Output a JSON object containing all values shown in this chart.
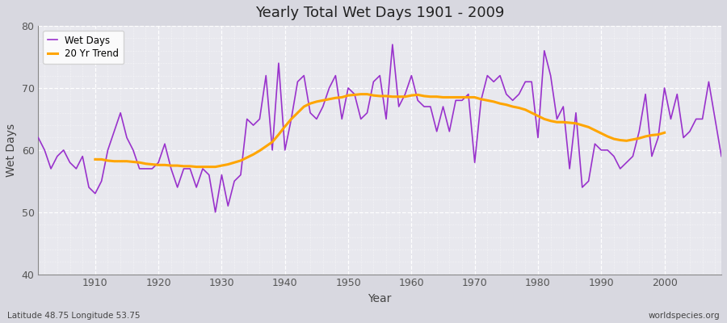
{
  "title": "Yearly Total Wet Days 1901 - 2009",
  "xlabel": "Year",
  "ylabel": "Wet Days",
  "footnote_left": "Latitude 48.75 Longitude 53.75",
  "footnote_right": "worldspecies.org",
  "legend_wet": "Wet Days",
  "legend_trend": "20 Yr Trend",
  "wet_color": "#9932CC",
  "trend_color": "#FFA500",
  "plot_bg_color": "#e8e8ee",
  "fig_bg_color": "#d8d8e0",
  "ylim": [
    40,
    80
  ],
  "xlim": [
    1901,
    2009
  ],
  "yticks": [
    40,
    50,
    60,
    70,
    80
  ],
  "xticks": [
    1910,
    1920,
    1930,
    1940,
    1950,
    1960,
    1970,
    1980,
    1990,
    2000
  ],
  "years": [
    1901,
    1902,
    1903,
    1904,
    1905,
    1906,
    1907,
    1908,
    1909,
    1910,
    1911,
    1912,
    1913,
    1914,
    1915,
    1916,
    1917,
    1918,
    1919,
    1920,
    1921,
    1922,
    1923,
    1924,
    1925,
    1926,
    1927,
    1928,
    1929,
    1930,
    1931,
    1932,
    1933,
    1934,
    1935,
    1936,
    1937,
    1938,
    1939,
    1940,
    1941,
    1942,
    1943,
    1944,
    1945,
    1946,
    1947,
    1948,
    1949,
    1950,
    1951,
    1952,
    1953,
    1954,
    1955,
    1956,
    1957,
    1958,
    1959,
    1960,
    1961,
    1962,
    1963,
    1964,
    1965,
    1966,
    1967,
    1968,
    1969,
    1970,
    1971,
    1972,
    1973,
    1974,
    1975,
    1976,
    1977,
    1978,
    1979,
    1980,
    1981,
    1982,
    1983,
    1984,
    1985,
    1986,
    1987,
    1988,
    1989,
    1990,
    1991,
    1992,
    1993,
    1994,
    1995,
    1996,
    1997,
    1998,
    1999,
    2000,
    2001,
    2002,
    2003,
    2004,
    2005,
    2006,
    2007,
    2008,
    2009
  ],
  "wet_days": [
    62,
    60,
    57,
    59,
    60,
    58,
    57,
    59,
    54,
    53,
    55,
    60,
    63,
    66,
    62,
    60,
    57,
    57,
    57,
    58,
    61,
    57,
    54,
    57,
    57,
    54,
    57,
    56,
    50,
    56,
    51,
    55,
    56,
    65,
    64,
    65,
    72,
    60,
    74,
    60,
    65,
    71,
    72,
    66,
    65,
    67,
    70,
    72,
    65,
    70,
    69,
    65,
    66,
    71,
    72,
    65,
    77,
    67,
    69,
    72,
    68,
    67,
    67,
    63,
    67,
    63,
    68,
    68,
    69,
    58,
    68,
    72,
    71,
    72,
    69,
    68,
    69,
    71,
    71,
    62,
    76,
    72,
    65,
    67,
    57,
    66,
    54,
    55,
    61,
    60,
    60,
    59,
    57,
    58,
    59,
    63,
    69,
    59,
    62,
    70,
    65,
    69,
    62,
    63,
    65,
    65,
    71,
    65,
    59
  ],
  "trend_values": [
    null,
    null,
    null,
    null,
    null,
    null,
    null,
    null,
    null,
    58.5,
    58.5,
    58.3,
    58.2,
    58.2,
    58.2,
    58.1,
    58.0,
    57.8,
    57.7,
    57.6,
    57.6,
    57.5,
    57.5,
    57.4,
    57.4,
    57.3,
    57.3,
    57.3,
    57.3,
    57.5,
    57.7,
    58.0,
    58.3,
    58.8,
    59.3,
    59.9,
    60.6,
    61.3,
    62.5,
    63.8,
    65.0,
    66.0,
    67.0,
    67.5,
    67.8,
    68.0,
    68.2,
    68.4,
    68.5,
    68.8,
    68.9,
    69.0,
    69.0,
    68.8,
    68.7,
    68.7,
    68.6,
    68.6,
    68.6,
    68.8,
    68.9,
    68.7,
    68.6,
    68.6,
    68.5,
    68.5,
    68.5,
    68.5,
    68.5,
    68.5,
    68.2,
    68.0,
    67.8,
    67.5,
    67.3,
    67.0,
    66.8,
    66.5,
    66.0,
    65.5,
    65.0,
    64.7,
    64.5,
    64.5,
    64.4,
    64.3,
    64.0,
    63.7,
    63.2,
    62.7,
    62.2,
    61.8,
    61.6,
    61.5,
    61.7,
    61.9,
    62.2,
    62.4,
    62.5,
    62.8,
    null,
    null,
    null,
    null,
    null,
    null,
    null,
    null,
    null
  ]
}
